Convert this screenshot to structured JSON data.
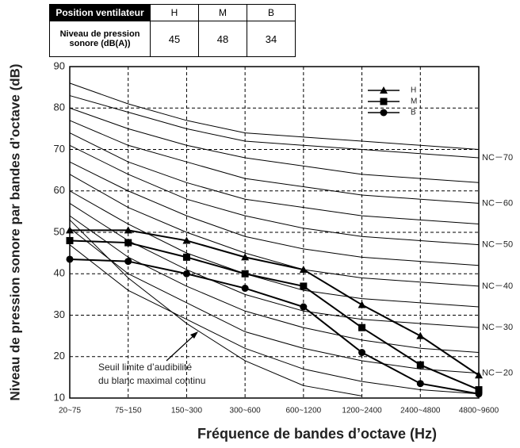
{
  "table": {
    "rows": [
      [
        "Position ventilateur",
        "H",
        "M",
        "B"
      ],
      [
        "Niveau de pression sonore (dB(A))",
        45,
        48,
        34
      ]
    ]
  },
  "chart_data": {
    "type": "line",
    "y_label": "Niveau de pression sonore par bandes d’octave (dB)",
    "x_label": "Fréquence de bandes d’octave (Hz)",
    "categories": [
      "20~75",
      "75~150",
      "150~300",
      "300~600",
      "600~1200",
      "1200~2400",
      "2400~4800",
      "4800~9600"
    ],
    "ylim": [
      10,
      90
    ],
    "yticks": [
      10,
      20,
      30,
      40,
      50,
      60,
      70,
      80,
      90
    ],
    "grid": true,
    "legend": "upper right",
    "series": [
      {
        "name": "H",
        "color": "#000000",
        "marker": "triangle",
        "values": [
          50.5,
          50.5,
          48,
          44,
          41,
          32.5,
          25,
          15.5
        ]
      },
      {
        "name": "M",
        "color": "#000000",
        "marker": "square",
        "values": [
          48,
          47.5,
          44,
          40,
          37,
          27,
          18,
          12
        ]
      },
      {
        "name": "B",
        "color": "#000000",
        "marker": "circle",
        "values": [
          43.5,
          43,
          40,
          36.5,
          32,
          21,
          13.5,
          11
        ]
      }
    ],
    "nc_curves": [
      {
        "label": null,
        "values": [
          47,
          36,
          29,
          22,
          17,
          14,
          12,
          11
        ]
      },
      {
        "label": "NC－20",
        "values": [
          51,
          40,
          33,
          26,
          22,
          19,
          17,
          16
        ]
      },
      {
        "label": null,
        "values": [
          54,
          44,
          37,
          31,
          27,
          24,
          22,
          21
        ]
      },
      {
        "label": "NC－30",
        "values": [
          57,
          48,
          41,
          35,
          31,
          29,
          28,
          27
        ]
      },
      {
        "label": null,
        "values": [
          60,
          52,
          45,
          40,
          36,
          34,
          33,
          32
        ]
      },
      {
        "label": "NC－40",
        "values": [
          64,
          56,
          50,
          45,
          41,
          39,
          38,
          37
        ]
      },
      {
        "label": null,
        "values": [
          67,
          60,
          54,
          49,
          46,
          44,
          43,
          42
        ]
      },
      {
        "label": "NC－50",
        "values": [
          71,
          64,
          58,
          54,
          51,
          49,
          48,
          47
        ]
      },
      {
        "label": null,
        "values": [
          74,
          67,
          62,
          58,
          56,
          54,
          53,
          52
        ]
      },
      {
        "label": "NC－60",
        "values": [
          77,
          71,
          67,
          63,
          61,
          59,
          58,
          57
        ]
      },
      {
        "label": null,
        "values": [
          80,
          75,
          71,
          68,
          66,
          64,
          63,
          62
        ]
      },
      {
        "label": "NC－70",
        "values": [
          83,
          79,
          75,
          72,
          71,
          70,
          69,
          68
        ]
      },
      {
        "label": null,
        "values": [
          86,
          81,
          77,
          74,
          73,
          72,
          71,
          70
        ]
      }
    ],
    "threshold": {
      "values": [
        53,
        39,
        28,
        19,
        13,
        10.5,
        null,
        null
      ]
    },
    "annotation": [
      "Seuil limite d’audibilité",
      "du blanc maximal continu"
    ]
  }
}
